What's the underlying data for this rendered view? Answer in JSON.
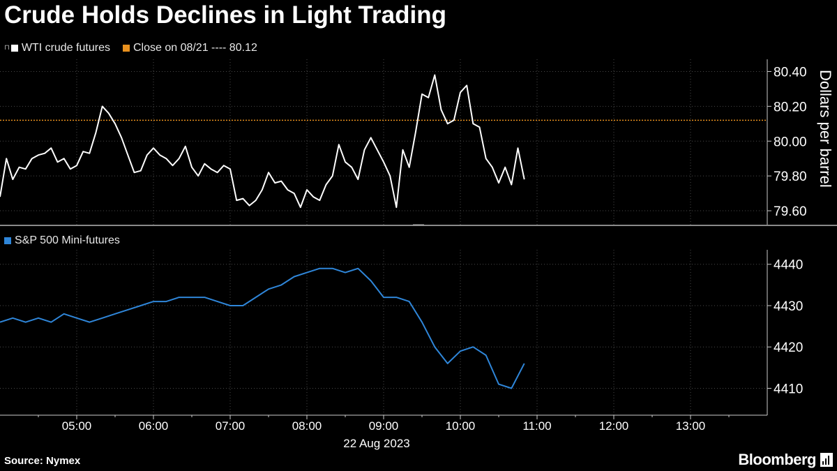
{
  "header": {
    "title": "Crude Holds Declines in Light Trading"
  },
  "legend_top": {
    "series1": "WTI crude futures",
    "series2": "Close on 08/21 ---- 80.12"
  },
  "legend_bottom": {
    "series1": "S&P 500 Mini-futures"
  },
  "footer": {
    "source": "Source: Nymex",
    "brand": "Bloomberg"
  },
  "colors": {
    "background": "#000000",
    "wti": "#ffffff",
    "close_line": "#e8901e",
    "spx": "#2f86d9",
    "grid": "#4a4a4a"
  },
  "chart_data": [
    {
      "type": "line",
      "name": "top-panel",
      "ylabel": "Dollars per barrel",
      "ylim": [
        79.52,
        80.47
      ],
      "yticks": [
        79.6,
        79.8,
        80.0,
        80.2,
        80.4
      ],
      "ytick_labels": [
        "79.60",
        "79.80",
        "80.00",
        "80.20",
        "80.40"
      ],
      "reference_line": {
        "label": "Close on 08/21",
        "value": 80.12
      },
      "series": [
        {
          "name": "WTI crude futures",
          "x": [
            "04:00",
            "04:05",
            "04:10",
            "04:15",
            "04:20",
            "04:25",
            "04:30",
            "04:35",
            "04:40",
            "04:45",
            "04:50",
            "04:55",
            "05:00",
            "05:05",
            "05:10",
            "05:15",
            "05:20",
            "05:25",
            "05:30",
            "05:35",
            "05:40",
            "05:45",
            "05:50",
            "05:55",
            "06:00",
            "06:05",
            "06:10",
            "06:15",
            "06:20",
            "06:25",
            "06:30",
            "06:35",
            "06:40",
            "06:45",
            "06:50",
            "06:55",
            "07:00",
            "07:05",
            "07:10",
            "07:15",
            "07:20",
            "07:25",
            "07:30",
            "07:35",
            "07:40",
            "07:45",
            "07:50",
            "07:55",
            "08:00",
            "08:05",
            "08:10",
            "08:15",
            "08:20",
            "08:25",
            "08:30",
            "08:35",
            "08:40",
            "08:45",
            "08:50",
            "08:55",
            "09:00",
            "09:05",
            "09:10",
            "09:15",
            "09:20",
            "09:25",
            "09:30",
            "09:35",
            "09:40",
            "09:45",
            "09:50",
            "09:55",
            "10:00",
            "10:05",
            "10:10",
            "10:15",
            "10:20",
            "10:25",
            "10:30",
            "10:35",
            "10:40",
            "10:45",
            "10:50"
          ],
          "values": [
            79.68,
            79.9,
            79.78,
            79.85,
            79.84,
            79.9,
            79.92,
            79.93,
            79.96,
            79.88,
            79.9,
            79.84,
            79.86,
            79.94,
            79.93,
            80.05,
            80.2,
            80.16,
            80.1,
            80.02,
            79.92,
            79.82,
            79.83,
            79.92,
            79.96,
            79.92,
            79.9,
            79.86,
            79.9,
            79.97,
            79.85,
            79.8,
            79.87,
            79.84,
            79.82,
            79.86,
            79.84,
            79.66,
            79.67,
            79.63,
            79.66,
            79.72,
            79.82,
            79.76,
            79.77,
            79.72,
            79.7,
            79.62,
            79.72,
            79.68,
            79.66,
            79.75,
            79.8,
            79.98,
            79.88,
            79.85,
            79.78,
            79.95,
            80.02,
            79.95,
            79.88,
            79.8,
            79.62,
            79.95,
            79.85,
            80.05,
            80.27,
            80.25,
            80.38,
            80.18,
            80.1,
            80.12,
            80.28,
            80.32,
            80.1,
            80.08,
            79.9,
            79.85,
            79.76,
            79.85,
            79.75,
            79.96,
            79.78
          ]
        }
      ]
    },
    {
      "type": "line",
      "name": "bottom-panel",
      "ylim": [
        4403.5,
        4443.5
      ],
      "yticks": [
        4410,
        4420,
        4430,
        4440
      ],
      "ytick_labels": [
        "4410",
        "4420",
        "4430",
        "4440"
      ],
      "xlabel": "22 Aug 2023",
      "xticks": [
        "05:00",
        "06:00",
        "07:00",
        "08:00",
        "09:00",
        "10:00",
        "11:00",
        "12:00",
        "13:00"
      ],
      "xlim": [
        "04:00",
        "14:00"
      ],
      "series": [
        {
          "name": "S&P 500 Mini-futures",
          "x": [
            "04:00",
            "04:10",
            "04:20",
            "04:30",
            "04:40",
            "04:50",
            "05:00",
            "05:10",
            "05:20",
            "05:30",
            "05:40",
            "05:50",
            "06:00",
            "06:10",
            "06:20",
            "06:30",
            "06:40",
            "06:50",
            "07:00",
            "07:10",
            "07:20",
            "07:30",
            "07:40",
            "07:50",
            "08:00",
            "08:10",
            "08:20",
            "08:30",
            "08:40",
            "08:50",
            "09:00",
            "09:10",
            "09:20",
            "09:30",
            "09:40",
            "09:50",
            "10:00",
            "10:10",
            "10:20",
            "10:30",
            "10:40",
            "10:50"
          ],
          "values": [
            4426,
            4427,
            4426,
            4427,
            4426,
            4428,
            4427,
            4426,
            4427,
            4428,
            4429,
            4430,
            4431,
            4431,
            4432,
            4432,
            4432,
            4431,
            4430,
            4430,
            4432,
            4434,
            4435,
            4437,
            4438,
            4439,
            4439,
            4438,
            4439,
            4436,
            4432,
            4432,
            4431,
            4426,
            4420,
            4416,
            4419,
            4420,
            4418,
            4411,
            4410,
            4416
          ]
        }
      ]
    }
  ]
}
